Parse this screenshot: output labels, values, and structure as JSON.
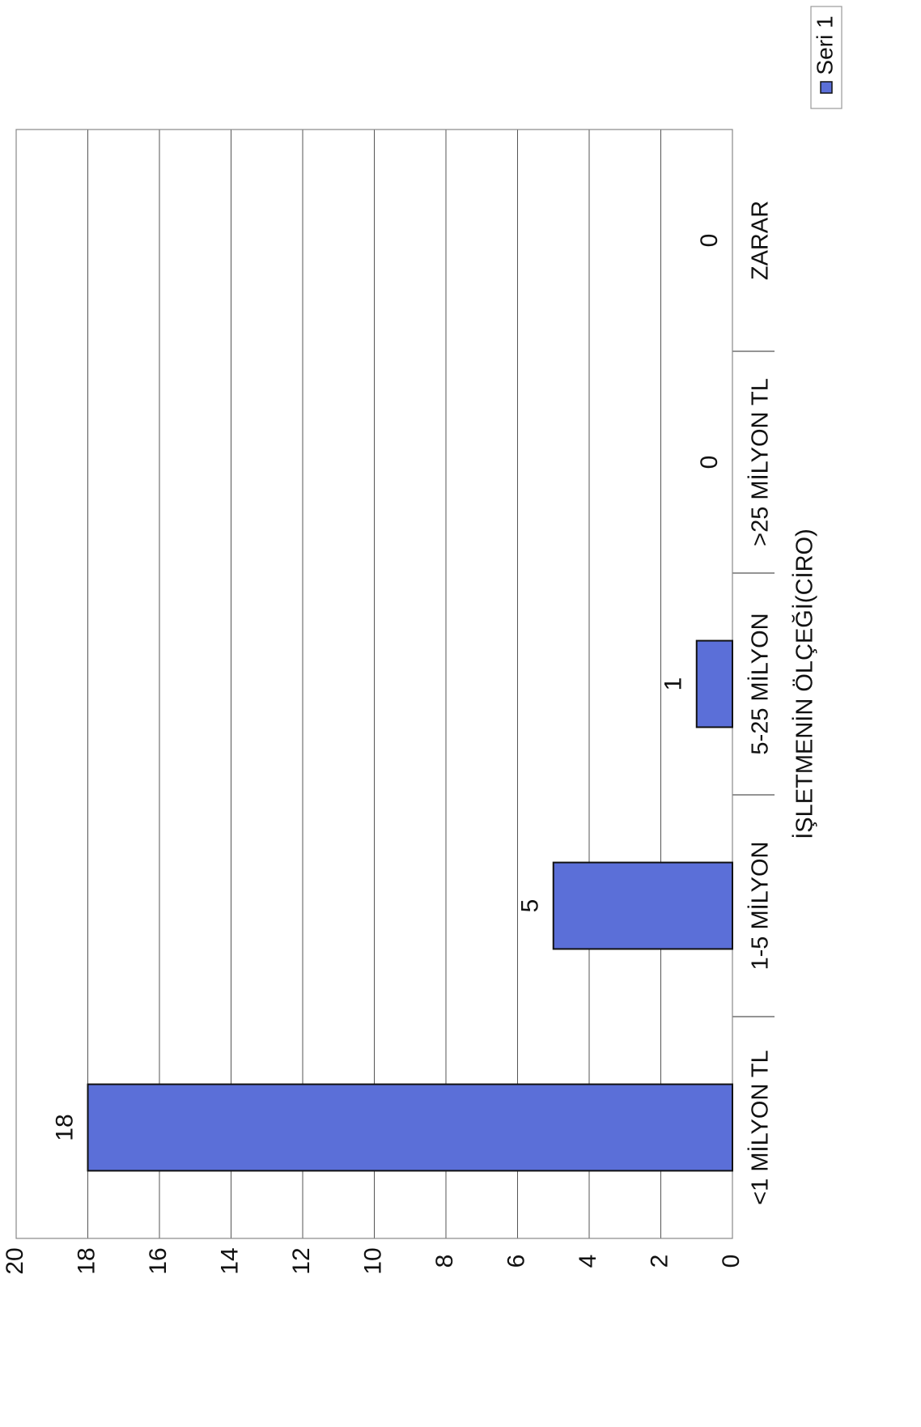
{
  "chart_data": {
    "type": "bar",
    "orientation": "rotated-90",
    "categories": [
      "<1 MİLYON TL",
      "1-5 MİLYON",
      "5-25 MİLYON",
      ">25 MİLYON TL",
      "ZARAR"
    ],
    "series": [
      {
        "name": "Seri 1",
        "values": [
          18,
          5,
          1,
          0,
          0
        ],
        "color": "#5b6fd8"
      }
    ],
    "data_labels": [
      "18",
      "5",
      "1",
      "0",
      "0"
    ],
    "xlabel": "İŞLETMENİN ÖLÇEĞİ(CİRO)",
    "ylabel": "",
    "ylim": [
      0,
      20
    ],
    "yticks": [
      0,
      2,
      4,
      6,
      8,
      10,
      12,
      14,
      16,
      18,
      20
    ],
    "grid": true,
    "legend_position": "top-right"
  }
}
